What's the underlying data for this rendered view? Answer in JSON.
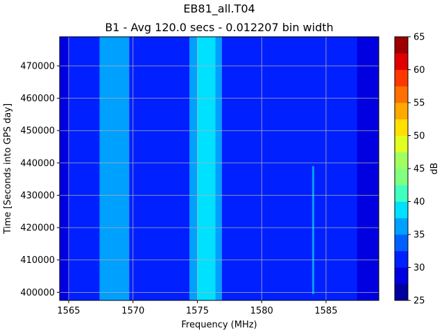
{
  "chart_data": {
    "type": "heatmap",
    "title": "EB81_all.T04",
    "subtitle": "B1 - Avg 120.0 secs - 0.012207 bin width",
    "xlabel": "Frequency (MHz)",
    "ylabel": "Time [Seconds into GPS day]",
    "xlim": [
      1564.3,
      1589.1
    ],
    "ylim": [
      397500,
      479000
    ],
    "xticks": [
      1565,
      1570,
      1575,
      1580,
      1585
    ],
    "yticks": [
      400000,
      410000,
      420000,
      430000,
      440000,
      450000,
      460000,
      470000
    ],
    "grid": true,
    "colorbar": {
      "label": "dB",
      "levels": [
        25,
        27.5,
        30,
        32.5,
        35,
        37.5,
        40,
        42.5,
        45,
        47.5,
        50,
        52.5,
        55,
        57.5,
        60,
        62.5,
        65
      ],
      "ticks": [
        25,
        30,
        35,
        40,
        45,
        50,
        55,
        60,
        65
      ],
      "colors": [
        "#00009e",
        "#0000e0",
        "#0020ff",
        "#0060ff",
        "#00a0ff",
        "#00e0ff",
        "#40ffc0",
        "#80ff80",
        "#a0ff60",
        "#e0ff20",
        "#ffe000",
        "#ffa800",
        "#ff7000",
        "#ff3800",
        "#e00000",
        "#9e0000"
      ]
    },
    "bands": [
      {
        "x": [
          1564.3,
          1565.0
        ],
        "db": 28.5
      },
      {
        "x": [
          1565.0,
          1567.4
        ],
        "db": 32.0
      },
      {
        "x": [
          1567.4,
          1569.7
        ],
        "db": 35.5
      },
      {
        "x": [
          1569.7,
          1574.4
        ],
        "db": 32.0
      },
      {
        "x": [
          1574.4,
          1575.0
        ],
        "db": 35.5
      },
      {
        "x": [
          1575.0,
          1576.4
        ],
        "db": 38.5
      },
      {
        "x": [
          1576.4,
          1576.9
        ],
        "db": 35.5
      },
      {
        "x": [
          1576.9,
          1587.4
        ],
        "db": 32.0
      },
      {
        "x": [
          1587.4,
          1589.1
        ],
        "db": 28.5
      }
    ],
    "narrowband": {
      "x": 1584.0,
      "y": [
        399500,
        439000
      ],
      "db": 35.5
    }
  }
}
